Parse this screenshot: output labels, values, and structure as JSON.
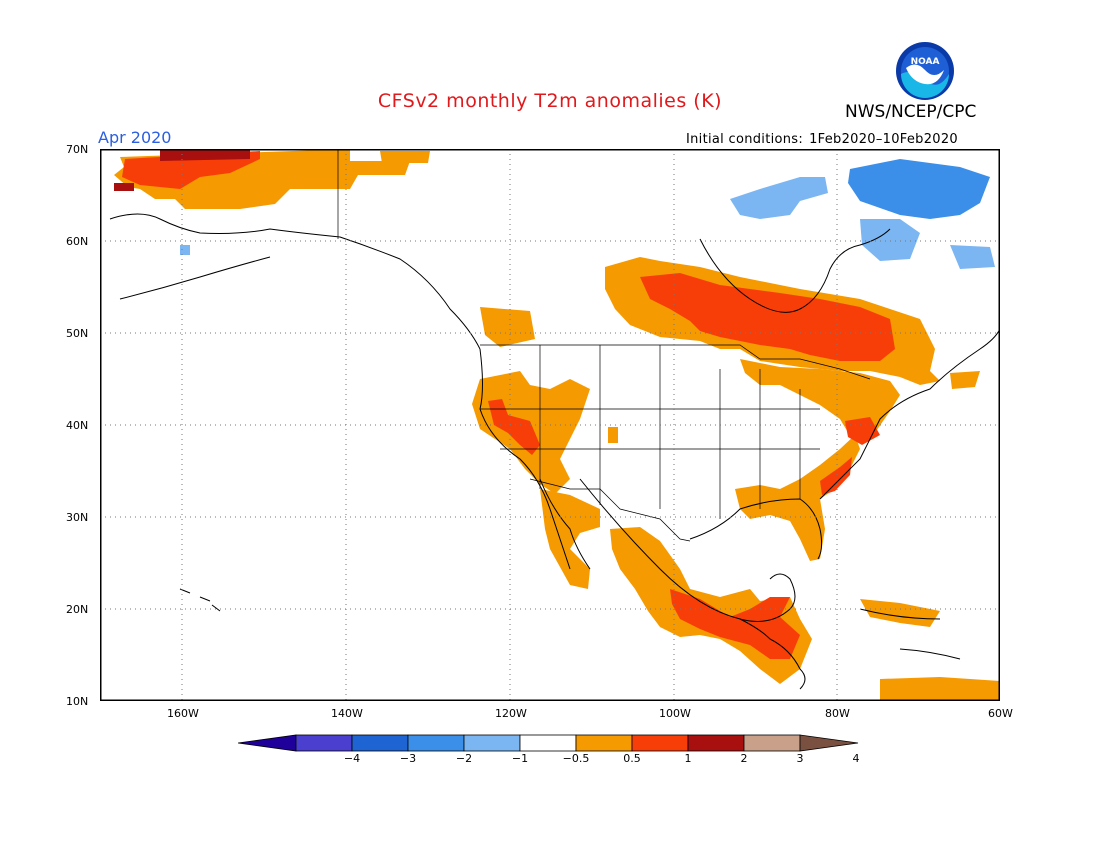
{
  "header": {
    "title": "CFSv2 monthly T2m anomalies (K)",
    "organization": "NWS/NCEP/CPC",
    "logo_text": "NOAA",
    "valid_month": "Apr 2020",
    "initial_conditions_label": "Initial conditions:",
    "initial_conditions_range": "1Feb2020–10Feb2020"
  },
  "map": {
    "projection": "lat-lon",
    "lon_range": [
      -170,
      -60
    ],
    "lat_range": [
      10,
      70
    ],
    "lat_labels": [
      "70N",
      "60N",
      "50N",
      "40N",
      "30N",
      "20N",
      "10N"
    ],
    "lon_labels": [
      "160W",
      "140W",
      "120W",
      "100W",
      "80W",
      "60W"
    ],
    "gridlines": "dotted"
  },
  "colorbar": {
    "labels": [
      "−4",
      "−3",
      "−2",
      "−1",
      "−0.5",
      "0.5",
      "1",
      "2",
      "3",
      "4"
    ],
    "colors": [
      "#20009a",
      "#4b3fd0",
      "#1e64d2",
      "#3c8fe8",
      "#7bb6f2",
      "#ffffff",
      "#f59a00",
      "#f83e08",
      "#a80f0f",
      "#c9a08a",
      "#7a5040"
    ]
  }
}
